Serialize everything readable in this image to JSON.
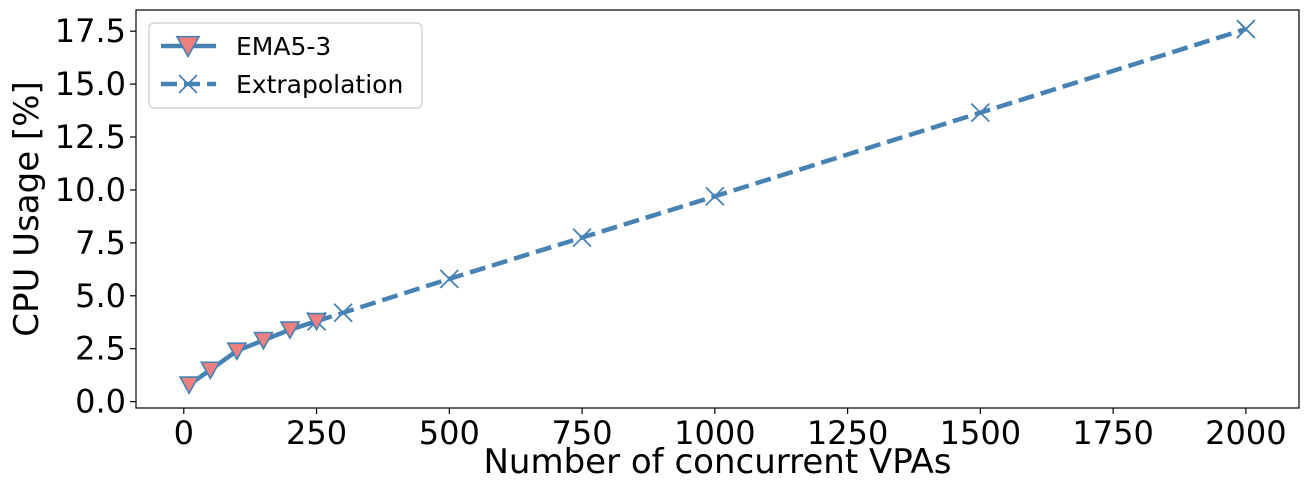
{
  "chart_data": {
    "type": "line",
    "xlabel": "Number of concurrent VPAs",
    "ylabel": "CPU Usage [%]",
    "xlim": [
      -90,
      2100
    ],
    "ylim": [
      -0.3,
      18.5
    ],
    "xticks": [
      0,
      250,
      500,
      750,
      1000,
      1250,
      1500,
      1750,
      2000
    ],
    "xtick_labels": [
      "0",
      "250",
      "500",
      "750",
      "1000",
      "1250",
      "1500",
      "1750",
      "2000"
    ],
    "yticks": [
      0.0,
      2.5,
      5.0,
      7.5,
      10.0,
      12.5,
      15.0,
      17.5
    ],
    "ytick_labels": [
      "0.0",
      "2.5",
      "5.0",
      "7.5",
      "10.0",
      "12.5",
      "15.0",
      "17.5"
    ],
    "grid": false,
    "legend_position": "top-left",
    "series": [
      {
        "name": "EMA5-3",
        "style": "solid",
        "marker": "triangle-down",
        "line_color": "#4682b4",
        "marker_fill": "#f08080",
        "x": [
          10,
          50,
          100,
          150,
          200,
          250
        ],
        "y": [
          0.8,
          1.5,
          2.4,
          2.9,
          3.4,
          3.8
        ]
      },
      {
        "name": "Extrapolation",
        "style": "dashed",
        "marker": "x",
        "line_color": "#4682b4",
        "x": [
          250,
          300,
          500,
          750,
          1000,
          1500,
          2000
        ],
        "y": [
          3.8,
          4.2,
          5.8,
          7.75,
          9.7,
          13.65,
          17.6
        ]
      }
    ]
  }
}
